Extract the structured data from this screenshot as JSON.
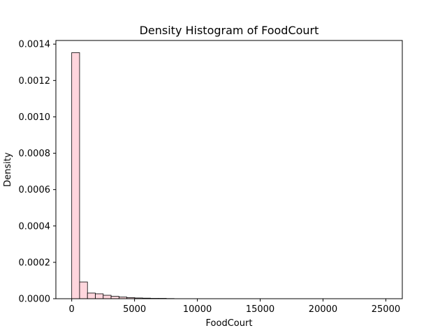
{
  "chart_data": {
    "type": "bar",
    "title": "Density Histogram of FoodCourt",
    "xlabel": "FoodCourt",
    "ylabel": "Density",
    "xlim": [
      -1260,
      26310
    ],
    "ylim": [
      0,
      0.00142
    ],
    "x_ticks": [
      0,
      5000,
      10000,
      15000,
      20000,
      25000
    ],
    "x_tick_labels": [
      "0",
      "5000",
      "10000",
      "15000",
      "20000",
      "25000"
    ],
    "y_ticks": [
      0,
      0.0002,
      0.0004,
      0.0006,
      0.0008,
      0.001,
      0.0012,
      0.0014
    ],
    "y_tick_labels": [
      "0.0000",
      "0.0002",
      "0.0004",
      "0.0006",
      "0.0008",
      "0.0010",
      "0.0012",
      "0.0014"
    ],
    "bin_edges": [
      0,
      627,
      1254,
      1881,
      2508,
      3135,
      3762,
      4389,
      5016,
      5643,
      6270,
      6897,
      7524,
      8151
    ],
    "values": [
      0.001353,
      9.2e-05,
      3.1e-05,
      2.7e-05,
      1.9e-05,
      1.3e-05,
      9e-06,
      6e-06,
      4e-06,
      3e-06,
      2e-06,
      2e-06,
      1e-06
    ],
    "bar_fill": "#ffd6dd",
    "bar_edge": "#000000",
    "grid": false,
    "legend": "none"
  }
}
